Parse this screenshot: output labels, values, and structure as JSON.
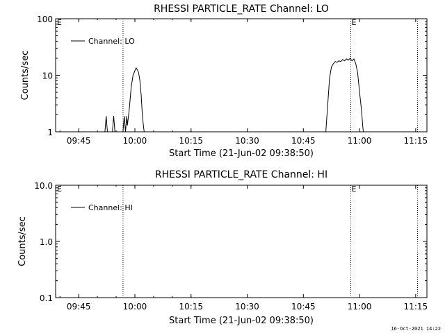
{
  "footer": {
    "timestamp": "16-Oct-2021 14:22"
  },
  "chart_data": [
    {
      "type": "line",
      "title": "RHESSI PARTICLE_RATE Channel: LO",
      "xlabel": "Start Time (21-Jun-02 09:38:50)",
      "ylabel": "Counts/sec",
      "yscale": "log",
      "ylim": [
        1,
        100
      ],
      "xlim": [
        "09:38:50",
        "11:18"
      ],
      "x_ticks": [
        "09:45",
        "10:00",
        "10:15",
        "10:30",
        "10:45",
        "11:00",
        "11:15"
      ],
      "y_ticks": [
        "1",
        "10",
        "100"
      ],
      "legend": {
        "position": "top-left",
        "label": "Channel: LO"
      },
      "event_lines": [
        {
          "time": "09:56:50",
          "label": ""
        },
        {
          "time": "10:57:40",
          "label": "E"
        },
        {
          "time": "11:15:30",
          "label": ""
        }
      ],
      "corner_label": "E",
      "series": [
        {
          "name": "Channel: LO",
          "points": [
            [
              "09:52:00",
              1
            ],
            [
              "09:52:20",
              1.9
            ],
            [
              "09:52:40",
              1
            ],
            [
              "09:54:00",
              1
            ],
            [
              "09:54:20",
              1.9
            ],
            [
              "09:54:40",
              1
            ],
            [
              "09:56:50",
              1
            ],
            [
              "09:57:10",
              1.9
            ],
            [
              "09:57:30",
              1
            ],
            [
              "09:57:50",
              1.9
            ],
            [
              "09:58:00",
              1.3
            ],
            [
              "09:58:30",
              2.5
            ],
            [
              "09:59:00",
              6
            ],
            [
              "09:59:30",
              10
            ],
            [
              "10:00:00",
              12
            ],
            [
              "10:00:20",
              13.5
            ],
            [
              "10:00:40",
              12.5
            ],
            [
              "10:01:00",
              11
            ],
            [
              "10:01:20",
              8
            ],
            [
              "10:01:40",
              4.5
            ],
            [
              "10:02:00",
              2
            ],
            [
              "10:02:20",
              1.2
            ],
            [
              "10:02:30",
              1
            ],
            [
              "10:51:00",
              1
            ],
            [
              "10:51:30",
              3
            ],
            [
              "10:52:00",
              9
            ],
            [
              "10:52:30",
              14
            ],
            [
              "10:53:00",
              16
            ],
            [
              "10:53:30",
              17.5
            ],
            [
              "10:54:00",
              17
            ],
            [
              "10:54:30",
              18
            ],
            [
              "10:55:00",
              17.5
            ],
            [
              "10:55:30",
              19
            ],
            [
              "10:56:00",
              18
            ],
            [
              "10:56:30",
              19.5
            ],
            [
              "10:57:00",
              18.5
            ],
            [
              "10:57:30",
              20
            ],
            [
              "10:58:00",
              18
            ],
            [
              "10:58:30",
              19.5
            ],
            [
              "10:59:00",
              16
            ],
            [
              "10:59:30",
              11
            ],
            [
              "11:00:00",
              5
            ],
            [
              "11:00:30",
              2.5
            ],
            [
              "11:00:50",
              1.3
            ],
            [
              "11:01:00",
              1
            ]
          ]
        }
      ]
    },
    {
      "type": "line",
      "title": "RHESSI PARTICLE_RATE Channel: HI",
      "xlabel": "Start Time (21-Jun-02 09:38:50)",
      "ylabel": "Counts/sec",
      "yscale": "log",
      "ylim": [
        0.1,
        10
      ],
      "xlim": [
        "09:38:50",
        "11:18"
      ],
      "x_ticks": [
        "09:45",
        "10:00",
        "10:15",
        "10:30",
        "10:45",
        "11:00",
        "11:15"
      ],
      "y_ticks": [
        "0.1",
        "1.0",
        "10.0"
      ],
      "legend": {
        "position": "top-left",
        "label": "Channel: HI"
      },
      "event_lines": [
        {
          "time": "09:56:50",
          "label": ""
        },
        {
          "time": "10:57:40",
          "label": "E"
        },
        {
          "time": "11:15:30",
          "label": ""
        }
      ],
      "corner_label": "E",
      "series": [
        {
          "name": "Channel: HI",
          "points": []
        }
      ]
    }
  ]
}
